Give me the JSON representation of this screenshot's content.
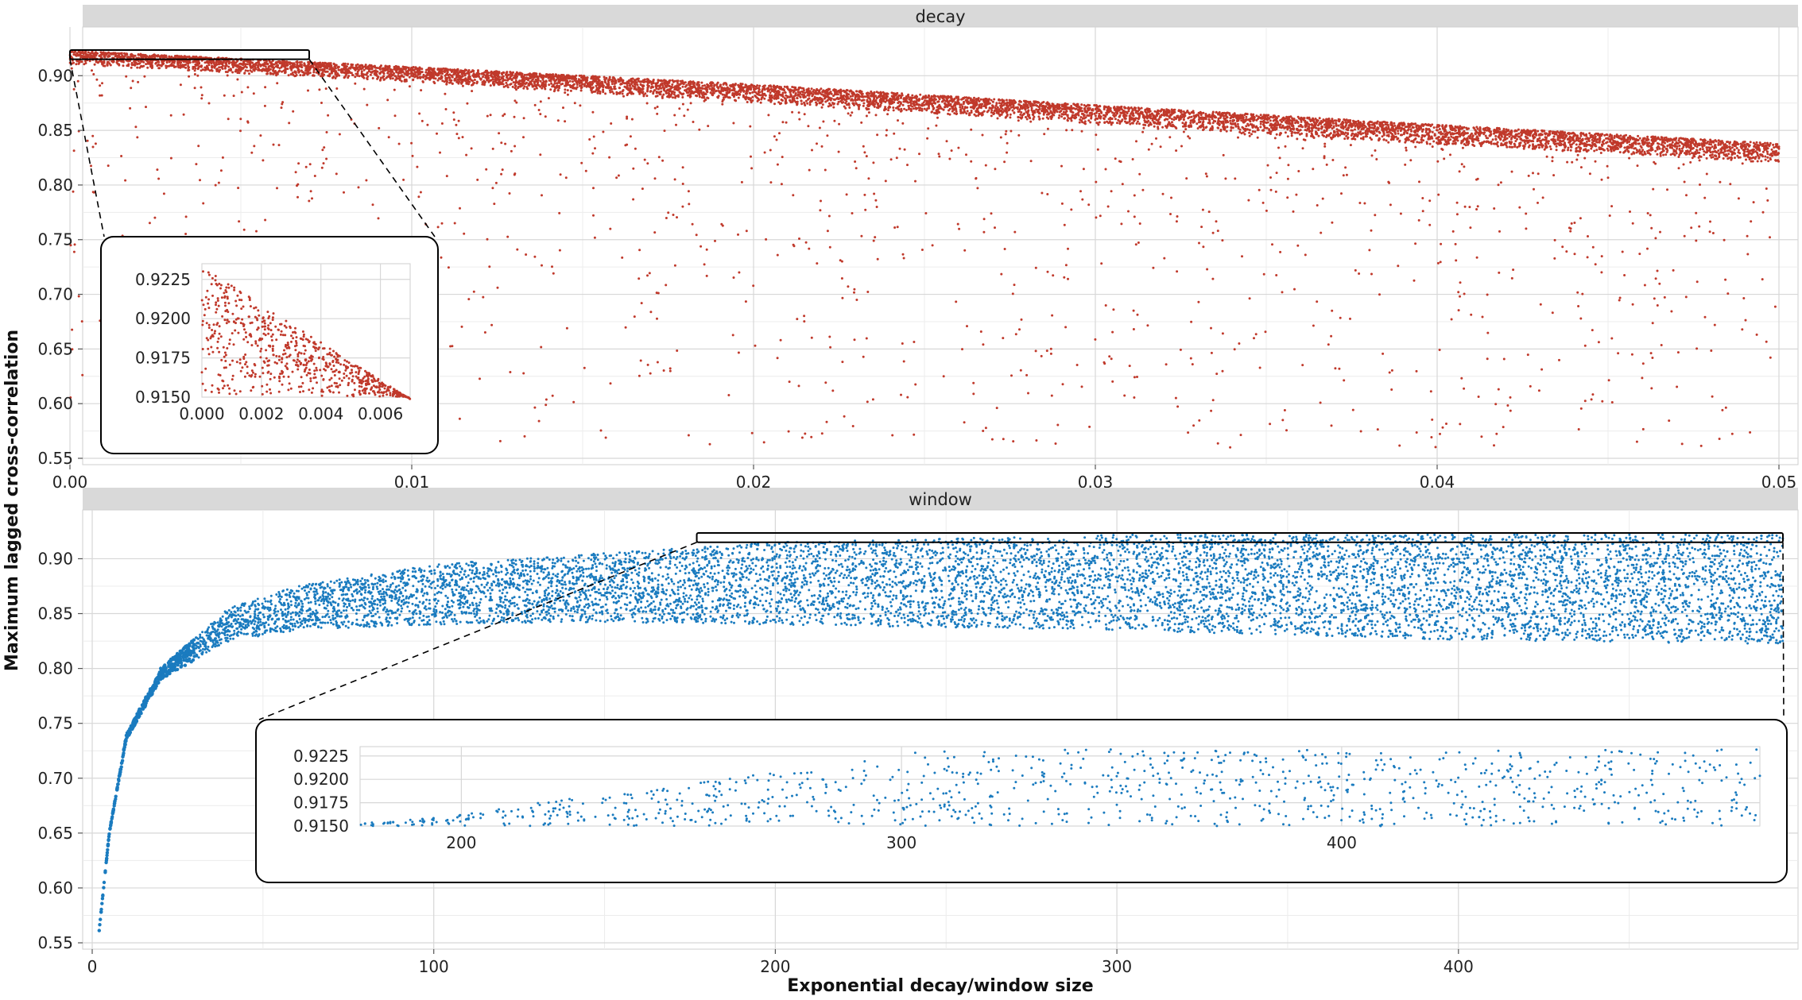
{
  "chart_data": {
    "type": "scatter",
    "xlabel": "Exponential decay/window size",
    "ylabel": "Maximum lagged cross-correlation",
    "colors": {
      "decay": "#c0392b",
      "window": "#1a7bbf"
    },
    "panels": [
      {
        "strip": "decay",
        "xlim": [
          0,
          0.05
        ],
        "ylim": [
          0.55,
          0.93
        ],
        "xticks": [
          0,
          0.01,
          0.02,
          0.03,
          0.04,
          0.05
        ],
        "xtick_labels": [
          "0.00",
          "0.01",
          "0.02",
          "0.03",
          "0.04",
          "0.05"
        ],
        "yticks": [
          0.55,
          0.6,
          0.65,
          0.7,
          0.75,
          0.8,
          0.85,
          0.9
        ],
        "ytick_labels": [
          "0.55",
          "0.60",
          "0.65",
          "0.70",
          "0.75",
          "0.80",
          "0.85",
          "0.90"
        ],
        "trend": {
          "x": [
            0,
            0.01,
            0.02,
            0.03,
            0.04,
            0.05
          ],
          "y_upper": [
            0.923,
            0.908,
            0.892,
            0.873,
            0.855,
            0.838
          ],
          "y_band_lower": [
            0.91,
            0.894,
            0.875,
            0.856,
            0.837,
            0.82
          ]
        },
        "point_count": 9000,
        "zoom_region": {
          "x": [
            0,
            0.007
          ],
          "y": [
            0.915,
            0.9235
          ]
        },
        "inset": {
          "xlim": [
            0,
            0.007
          ],
          "ylim": [
            0.915,
            0.9235
          ],
          "xticks": [
            0,
            0.002,
            0.004,
            0.006
          ],
          "xtick_labels": [
            "0.000",
            "0.002",
            "0.004",
            "0.006"
          ],
          "yticks": [
            0.915,
            0.9175,
            0.92,
            0.9225
          ],
          "ytick_labels": [
            "0.9150",
            "0.9175",
            "0.9200",
            "0.9225"
          ],
          "grid": true
        }
      },
      {
        "strip": "window",
        "xlim": [
          0,
          495
        ],
        "ylim": [
          0.55,
          0.93
        ],
        "xticks": [
          0,
          100,
          200,
          300,
          400
        ],
        "xtick_labels": [
          "0",
          "100",
          "200",
          "300",
          "400"
        ],
        "yticks": [
          0.55,
          0.6,
          0.65,
          0.7,
          0.75,
          0.8,
          0.85,
          0.9
        ],
        "ytick_labels": [
          "0.55",
          "0.60",
          "0.65",
          "0.70",
          "0.75",
          "0.80",
          "0.85",
          "0.90"
        ],
        "trend": {
          "x": [
            2,
            5,
            10,
            20,
            40,
            60,
            100,
            150,
            200,
            300,
            400,
            495
          ],
          "y_upper": [
            0.56,
            0.65,
            0.74,
            0.8,
            0.855,
            0.875,
            0.895,
            0.905,
            0.915,
            0.922,
            0.922,
            0.922
          ],
          "y_band_lower": [
            0.56,
            0.65,
            0.735,
            0.79,
            0.825,
            0.835,
            0.84,
            0.842,
            0.84,
            0.835,
            0.826,
            0.822
          ]
        },
        "point_count": 9000,
        "zoom_region": {
          "x": [
            177,
            495
          ],
          "y": [
            0.915,
            0.9235
          ]
        },
        "inset": {
          "xlim": [
            177,
            495
          ],
          "ylim": [
            0.915,
            0.9235
          ],
          "xticks": [
            200,
            300,
            400
          ],
          "xtick_labels": [
            "200",
            "300",
            "400"
          ],
          "yticks": [
            0.915,
            0.9175,
            0.92,
            0.9225
          ],
          "ytick_labels": [
            "0.9150",
            "0.9175",
            "0.9200",
            "0.9225"
          ],
          "grid": true
        }
      }
    ],
    "grid": true,
    "legend": "none"
  }
}
